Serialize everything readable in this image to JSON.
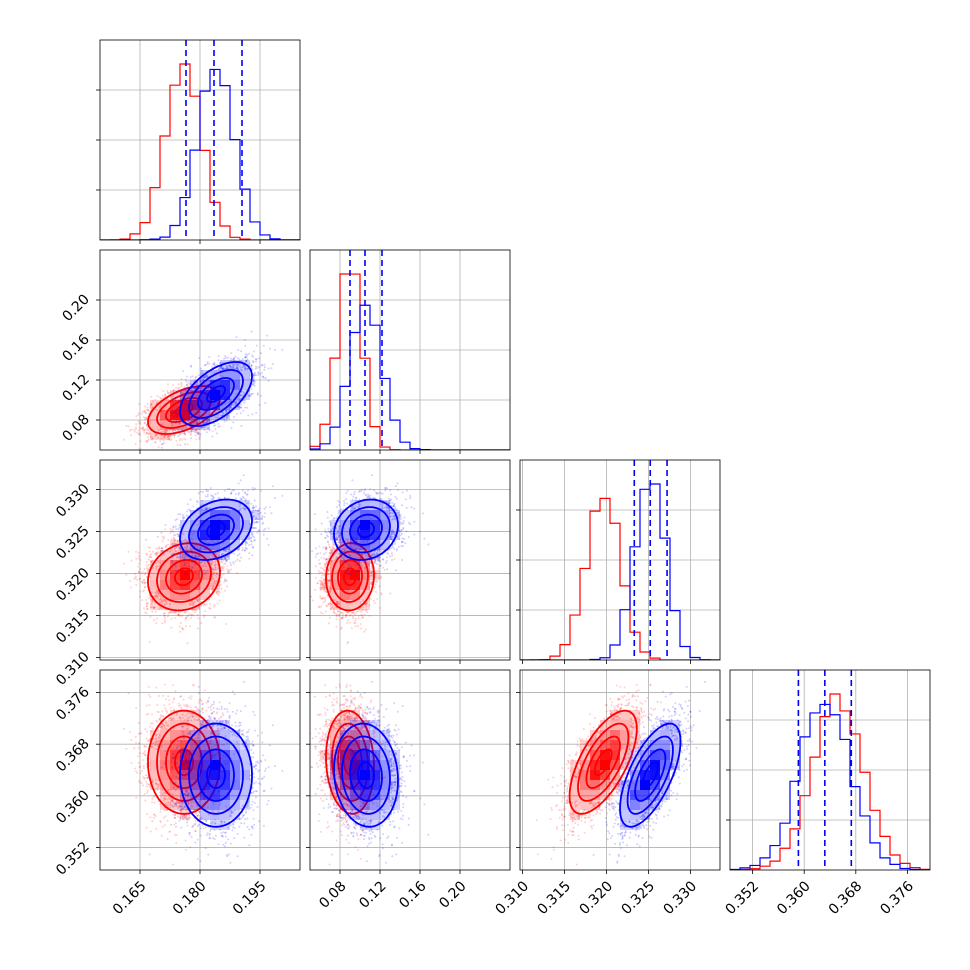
{
  "chart_data": {
    "type": "corner",
    "grid": true,
    "colors": {
      "model_a": "#ff0000",
      "model_b": "#0000ff"
    },
    "parameters": [
      {
        "ticks": [
          0.165,
          0.18,
          0.195
        ],
        "tick_labels": [
          "0.165",
          "0.180",
          "0.195"
        ],
        "range": [
          0.155,
          0.205
        ]
      },
      {
        "ticks": [
          0.08,
          0.12,
          0.16,
          0.2
        ],
        "tick_labels": [
          "0.08",
          "0.12",
          "0.16",
          "0.20"
        ],
        "range": [
          0.05,
          0.25
        ]
      },
      {
        "ticks": [
          0.31,
          0.315,
          0.32,
          0.325,
          0.33
        ],
        "tick_labels": [
          "0.310",
          "0.315",
          "0.320",
          "0.325",
          "0.330"
        ],
        "range": [
          0.3097,
          0.3335
        ]
      },
      {
        "ticks": [
          0.352,
          0.36,
          0.368,
          0.376
        ],
        "tick_labels": [
          "0.352",
          "0.360",
          "0.368",
          "0.376"
        ],
        "range": [
          0.3485,
          0.3795
        ]
      }
    ],
    "series": [
      {
        "color": "#ff0000",
        "means": [
          0.176,
          0.09,
          0.3196,
          0.3652
        ],
        "sigmas": [
          0.0045,
          0.012,
          0.002,
          0.004
        ],
        "correlations": [
          [
            0,
            1,
            0.5
          ],
          [
            0,
            2,
            0.15
          ],
          [
            0,
            3,
            0.0
          ],
          [
            1,
            2,
            0.05
          ],
          [
            1,
            3,
            -0.1
          ],
          [
            2,
            3,
            0.65
          ]
        ]
      },
      {
        "color": "#0000ff",
        "means": [
          0.184,
          0.106,
          0.3252,
          0.3632
        ],
        "sigmas": [
          0.0045,
          0.016,
          0.0018,
          0.004
        ],
        "correlations": [
          [
            0,
            1,
            0.55
          ],
          [
            0,
            2,
            0.3
          ],
          [
            0,
            3,
            0.0
          ],
          [
            1,
            2,
            0.15
          ],
          [
            1,
            3,
            -0.1
          ],
          [
            2,
            3,
            0.65
          ]
        ]
      }
    ],
    "quantiles_series": "#0000ff",
    "quantiles": [
      [
        0.1765,
        0.1835,
        0.1905
      ],
      [
        0.09,
        0.105,
        0.122
      ],
      [
        0.3233,
        0.3252,
        0.3272
      ],
      [
        0.3591,
        0.3632,
        0.3673
      ]
    ]
  }
}
